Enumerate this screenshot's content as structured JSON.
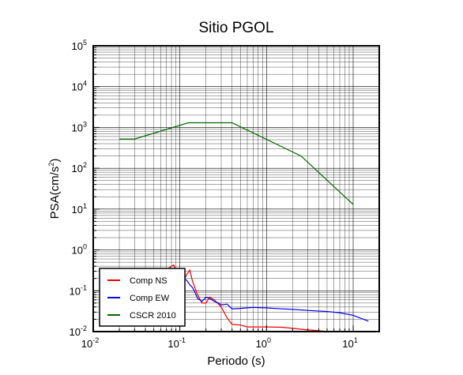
{
  "chart_data": {
    "type": "line",
    "title": "Sitio PGOL",
    "xlabel": "Periodo (s)",
    "ylabel_base": "PSA(cm/s",
    "ylabel_sup": "2",
    "ylabel_end": ")",
    "x_scale": "log",
    "y_scale": "log",
    "xlim": [
      0.01,
      20
    ],
    "ylim": [
      0.01,
      100000
    ],
    "grid": true,
    "legend_position": "bottom-left",
    "x_ticks": [
      {
        "base": "10",
        "exp": "-2",
        "value": 0.01
      },
      {
        "base": "10",
        "exp": "-1",
        "value": 0.1
      },
      {
        "base": "10",
        "exp": "0",
        "value": 1
      },
      {
        "base": "10",
        "exp": "1",
        "value": 10
      }
    ],
    "y_ticks": [
      {
        "base": "10",
        "exp": "-2",
        "value": 0.01
      },
      {
        "base": "10",
        "exp": "-1",
        "value": 0.1
      },
      {
        "base": "10",
        "exp": "0",
        "value": 1
      },
      {
        "base": "10",
        "exp": "1",
        "value": 10
      },
      {
        "base": "10",
        "exp": "2",
        "value": 100
      },
      {
        "base": "10",
        "exp": "3",
        "value": 1000
      },
      {
        "base": "10",
        "exp": "4",
        "value": 10000
      },
      {
        "base": "10",
        "exp": "5",
        "value": 100000
      }
    ],
    "series": [
      {
        "name": "Comp NS",
        "color": "#ee0000",
        "points": [
          [
            0.07,
            0.34
          ],
          [
            0.075,
            0.36
          ],
          [
            0.08,
            0.4
          ],
          [
            0.085,
            0.43
          ],
          [
            0.09,
            0.3
          ],
          [
            0.1,
            0.2
          ],
          [
            0.11,
            0.17
          ],
          [
            0.12,
            0.25
          ],
          [
            0.13,
            0.32
          ],
          [
            0.14,
            0.17
          ],
          [
            0.16,
            0.08
          ],
          [
            0.18,
            0.05
          ],
          [
            0.2,
            0.05
          ],
          [
            0.22,
            0.07
          ],
          [
            0.25,
            0.06
          ],
          [
            0.3,
            0.04
          ],
          [
            0.35,
            0.022
          ],
          [
            0.4,
            0.015
          ],
          [
            0.5,
            0.0145
          ],
          [
            0.6,
            0.013
          ],
          [
            0.8,
            0.013
          ],
          [
            1.0,
            0.013
          ],
          [
            1.5,
            0.0128
          ],
          [
            2.0,
            0.012
          ],
          [
            3.0,
            0.011
          ],
          [
            4.0,
            0.0105
          ],
          [
            5.0,
            0.01
          ]
        ]
      },
      {
        "name": "Comp EW",
        "color": "#0000ee",
        "points": [
          [
            0.1,
            0.26
          ],
          [
            0.11,
            0.2
          ],
          [
            0.12,
            0.18
          ],
          [
            0.13,
            0.14
          ],
          [
            0.14,
            0.12
          ],
          [
            0.15,
            0.09
          ],
          [
            0.16,
            0.065
          ],
          [
            0.18,
            0.055
          ],
          [
            0.2,
            0.07
          ],
          [
            0.22,
            0.065
          ],
          [
            0.25,
            0.055
          ],
          [
            0.28,
            0.05
          ],
          [
            0.3,
            0.045
          ],
          [
            0.35,
            0.047
          ],
          [
            0.4,
            0.036
          ],
          [
            0.5,
            0.037
          ],
          [
            0.7,
            0.039
          ],
          [
            1.0,
            0.038
          ],
          [
            1.5,
            0.036
          ],
          [
            2.0,
            0.035
          ],
          [
            3.0,
            0.033
          ],
          [
            5.0,
            0.031
          ],
          [
            7.0,
            0.029
          ],
          [
            10.0,
            0.025
          ],
          [
            15.0,
            0.018
          ]
        ]
      },
      {
        "name": "CSCR 2010",
        "color": "#006600",
        "points": [
          [
            0.02,
            520
          ],
          [
            0.03,
            520
          ],
          [
            0.125,
            1300
          ],
          [
            0.4,
            1300
          ],
          [
            2.5,
            200
          ],
          [
            10.0,
            13
          ]
        ]
      }
    ]
  }
}
